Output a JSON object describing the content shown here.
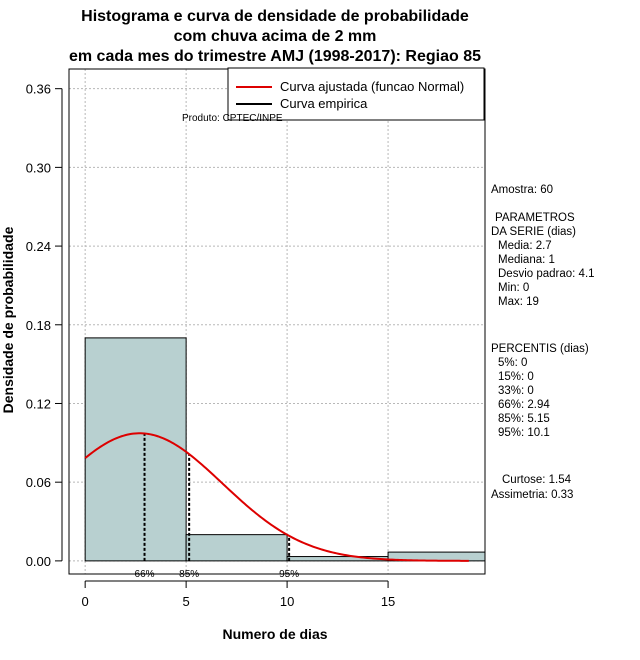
{
  "chart_data": {
    "type": "bar",
    "title": [
      "Histograma e curva de densidade de probabilidade",
      "com chuva acima de 2 mm",
      "em cada mes do trimestre AMJ (1998-2017): Regiao 85"
    ],
    "xlabel": "Numero de dias",
    "ylabel": "Densidade de probabilidade",
    "xlim": [
      -0.8,
      19.8
    ],
    "ylim": [
      -0.01,
      0.375
    ],
    "xticks": [
      0,
      5,
      10,
      15
    ],
    "yticks": [
      0.0,
      0.06,
      0.12,
      0.18,
      0.24,
      0.3,
      0.36
    ],
    "ytick_labels": [
      "0.00",
      "0.06",
      "0.12",
      "0.18",
      "0.24",
      "0.30",
      "0.36"
    ],
    "grid": true,
    "legend_position": "top-right",
    "bins": [
      {
        "x0": 0,
        "x1": 5,
        "density": 0.17
      },
      {
        "x0": 5,
        "x1": 10,
        "density": 0.02
      },
      {
        "x0": 10,
        "x1": 15,
        "density": 0.0033
      },
      {
        "x0": 15,
        "x1": 20,
        "density": 0.0067
      }
    ],
    "bar_color": "#b8d0d0",
    "series": [
      {
        "name": "Curva ajustada (funcao Normal)",
        "color": "#dd0000",
        "kind": "normal",
        "mean": 2.7,
        "sd": 4.1
      },
      {
        "name": "Curva empirica",
        "color": "#000000",
        "kind": "empirical"
      }
    ],
    "percentile_markers": [
      {
        "label": "66%",
        "x": 2.94
      },
      {
        "label": "85%",
        "x": 5.15
      },
      {
        "label": "95%",
        "x": 10.1
      }
    ],
    "producer_note": "Produto: CPTEC/INPE"
  },
  "stats": {
    "amostra": "Amostra: 60",
    "params_title": [
      "PARAMETROS",
      "DA SERIE (dias)"
    ],
    "params": [
      "Media: 2.7",
      "Mediana: 1",
      "Desvio padrao: 4.1",
      "Min: 0",
      "Max: 19"
    ],
    "percentis_title": "PERCENTIS (dias)",
    "percentis": [
      "5%: 0",
      "15%: 0",
      "33%: 0",
      "66%: 2.94",
      "85%: 5.15",
      "95%: 10.1"
    ],
    "curtose": "Curtose: 1.54",
    "assimetria": "Assimetria: 0.33"
  }
}
